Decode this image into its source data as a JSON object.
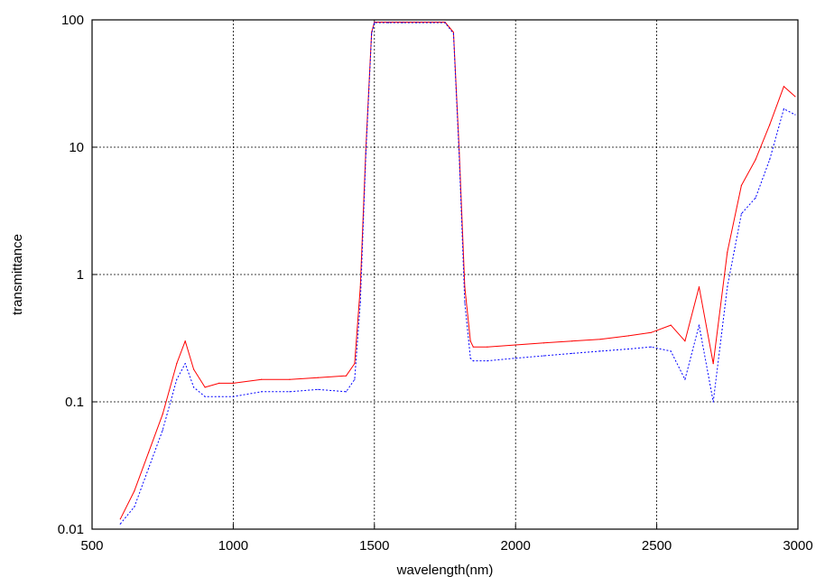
{
  "chart_data": {
    "type": "line",
    "title": "",
    "xlabel": "wavelength(nm)",
    "ylabel": "transmittance",
    "xlim": [
      500,
      3000
    ],
    "ylim": [
      0.01,
      100
    ],
    "yscale": "log",
    "grid": true,
    "x_ticks": [
      "500",
      "1000",
      "1500",
      "2000",
      "2500",
      "3000"
    ],
    "y_ticks": [
      "0.01",
      "0.1",
      "1",
      "10",
      "100"
    ],
    "series": [
      {
        "style": "solid",
        "color": "#ff0000",
        "x": [
          600,
          650,
          700,
          750,
          800,
          830,
          860,
          900,
          950,
          1000,
          1100,
          1200,
          1300,
          1400,
          1430,
          1450,
          1470,
          1490,
          1500,
          1550,
          1600,
          1650,
          1700,
          1750,
          1780,
          1800,
          1820,
          1840,
          1850,
          1900,
          2000,
          2100,
          2200,
          2300,
          2400,
          2480,
          2550,
          2600,
          2650,
          2700,
          2750,
          2800,
          2850,
          2900,
          2950,
          2990
        ],
        "y": [
          0.012,
          0.02,
          0.04,
          0.08,
          0.2,
          0.3,
          0.18,
          0.13,
          0.14,
          0.14,
          0.15,
          0.15,
          0.155,
          0.16,
          0.2,
          0.8,
          10,
          80,
          96,
          96,
          96,
          96,
          96,
          96,
          80,
          10,
          0.8,
          0.3,
          0.27,
          0.27,
          0.28,
          0.29,
          0.3,
          0.31,
          0.33,
          0.35,
          0.4,
          0.3,
          0.8,
          0.2,
          1.5,
          5,
          8,
          15,
          30,
          25
        ]
      },
      {
        "style": "dotted",
        "color": "#0000ff",
        "x": [
          600,
          650,
          700,
          750,
          800,
          830,
          860,
          900,
          950,
          1000,
          1100,
          1200,
          1300,
          1400,
          1430,
          1450,
          1470,
          1490,
          1500,
          1550,
          1600,
          1650,
          1700,
          1750,
          1780,
          1800,
          1820,
          1840,
          1850,
          1900,
          2000,
          2100,
          2200,
          2300,
          2400,
          2480,
          2550,
          2600,
          2650,
          2700,
          2750,
          2800,
          2850,
          2900,
          2950,
          2990
        ],
        "y": [
          0.011,
          0.015,
          0.03,
          0.06,
          0.15,
          0.2,
          0.13,
          0.11,
          0.11,
          0.11,
          0.12,
          0.12,
          0.125,
          0.12,
          0.15,
          0.6,
          9,
          78,
          95,
          95,
          95,
          95,
          95,
          95,
          78,
          9,
          0.6,
          0.22,
          0.21,
          0.21,
          0.22,
          0.23,
          0.24,
          0.25,
          0.26,
          0.27,
          0.25,
          0.15,
          0.4,
          0.1,
          0.8,
          3,
          4,
          8,
          20,
          18
        ]
      }
    ]
  }
}
